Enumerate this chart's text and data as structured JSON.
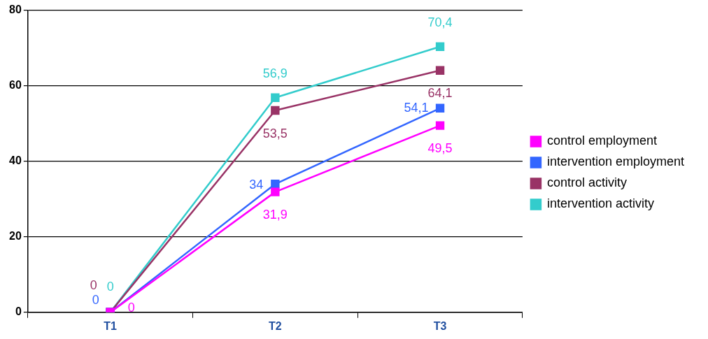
{
  "chart_data": {
    "type": "line",
    "categories": [
      "T1",
      "T2",
      "T3"
    ],
    "series": [
      {
        "name": "control employment",
        "color": "#ff00ff",
        "values": [
          0,
          31.9,
          49.5
        ],
        "value_labels": [
          "0",
          "31,9",
          "49,5"
        ]
      },
      {
        "name": "intervention employment",
        "color": "#3366ff",
        "values": [
          0,
          34,
          54.1
        ],
        "value_labels": [
          "0",
          "34",
          "54,1"
        ]
      },
      {
        "name": "control activity",
        "color": "#993366",
        "values": [
          0,
          53.5,
          64.1
        ],
        "value_labels": [
          "0",
          "53,5",
          "64,1"
        ]
      },
      {
        "name": "intervention activity",
        "color": "#33cccc",
        "values": [
          0,
          56.9,
          70.4
        ],
        "value_labels": [
          "0",
          "56,9",
          "70,4"
        ]
      }
    ],
    "ylim": [
      0,
      80
    ],
    "yticks": [
      0,
      20,
      40,
      60,
      80
    ],
    "grid": "y",
    "legend": "right",
    "marker": "square",
    "line_style": "solid"
  }
}
